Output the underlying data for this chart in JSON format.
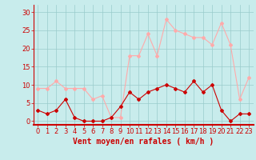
{
  "hours": [
    0,
    1,
    2,
    3,
    4,
    5,
    6,
    7,
    8,
    9,
    10,
    11,
    12,
    13,
    14,
    15,
    16,
    17,
    18,
    19,
    20,
    21,
    22,
    23
  ],
  "wind_avg": [
    3,
    2,
    3,
    6,
    1,
    0,
    0,
    0,
    1,
    4,
    8,
    6,
    8,
    9,
    10,
    9,
    8,
    11,
    8,
    10,
    3,
    0,
    2,
    2
  ],
  "wind_gust": [
    9,
    9,
    11,
    9,
    9,
    9,
    6,
    7,
    1,
    1,
    18,
    18,
    24,
    18,
    28,
    25,
    24,
    23,
    23,
    21,
    27,
    21,
    6,
    12
  ],
  "bg_color": "#c8ecec",
  "avg_color": "#cc0000",
  "gust_color": "#ffaaaa",
  "grid_color": "#99cccc",
  "xlabel": "Vent moyen/en rafales ( km/h )",
  "ylabel_ticks": [
    0,
    5,
    10,
    15,
    20,
    25,
    30
  ],
  "ylim": [
    -1,
    32
  ],
  "xlim": [
    -0.5,
    23.5
  ],
  "axis_fontsize": 7,
  "tick_fontsize": 6
}
